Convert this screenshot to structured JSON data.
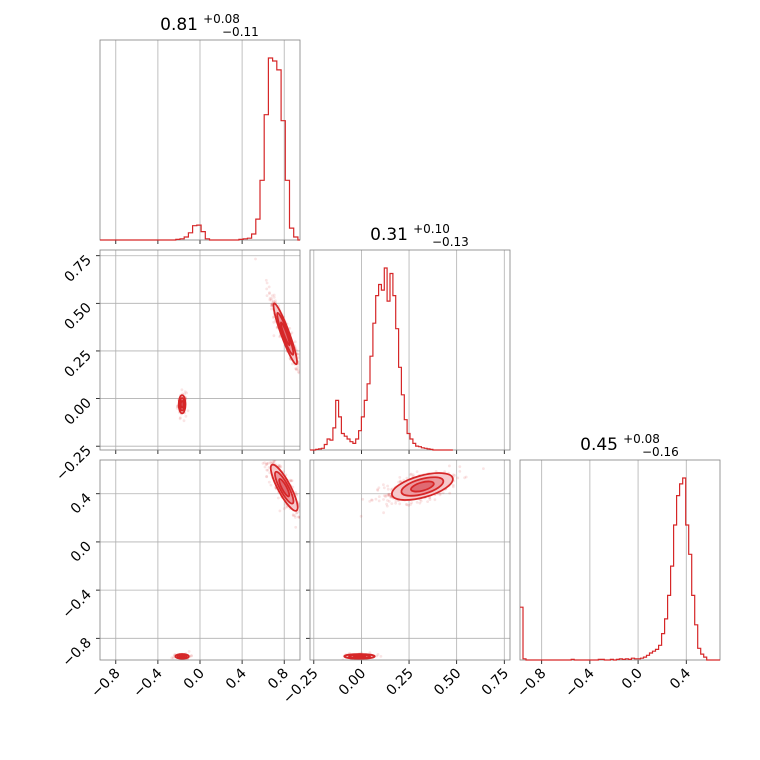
{
  "chart_data": {
    "type": "corner",
    "color": "#d62728",
    "parameters": [
      {
        "median_label": "0.81",
        "plus": "+0.08",
        "minus": "−0.11",
        "range": [
          -0.95,
          0.95
        ],
        "ticks": [
          -0.8,
          -0.4,
          0.0,
          0.4,
          0.8
        ],
        "tick_labels": [
          "−0.8",
          "−0.4",
          "0.0",
          "0.4",
          "0.8"
        ]
      },
      {
        "median_label": "0.31",
        "plus": "+0.10",
        "minus": "−0.13",
        "range": [
          -0.27,
          0.78
        ],
        "ticks": [
          -0.25,
          0.0,
          0.25,
          0.5,
          0.75
        ],
        "tick_labels": [
          "−0.25",
          "0.00",
          "0.25",
          "0.50",
          "0.75"
        ]
      },
      {
        "median_label": "0.45",
        "plus": "+0.08",
        "minus": "−0.16",
        "range": [
          -0.98,
          0.68
        ],
        "ticks": [
          -0.8,
          -0.4,
          0.0,
          0.4
        ],
        "tick_labels": [
          "−0.8",
          "−0.4",
          "0.0",
          "0.4"
        ]
      }
    ],
    "histograms": [
      {
        "edges_start": -0.95,
        "bin_width": 0.04,
        "counts": [
          0,
          0,
          0,
          0,
          0,
          0,
          0,
          0,
          0,
          0,
          0,
          0,
          0,
          0,
          0,
          0,
          0,
          0,
          1,
          2,
          5,
          12,
          24,
          25,
          14,
          2,
          0,
          0,
          0,
          0,
          0,
          0,
          0,
          1,
          2,
          3,
          10,
          35,
          100,
          210,
          305,
          300,
          285,
          200,
          100,
          20,
          5,
          0
        ]
      },
      {
        "edges_start": -0.27,
        "bin_width": 0.015,
        "counts": [
          0,
          0,
          1,
          2,
          3,
          10,
          20,
          18,
          40,
          90,
          60,
          30,
          25,
          20,
          15,
          12,
          20,
          35,
          60,
          90,
          120,
          170,
          230,
          280,
          300,
          290,
          330,
          270,
          320,
          280,
          220,
          150,
          100,
          55,
          30,
          20,
          12,
          7,
          6,
          4,
          3,
          2,
          1,
          0,
          0,
          0,
          0,
          0,
          0,
          0
        ]
      },
      {
        "edges_start": -0.98,
        "bin_width": 0.025,
        "counts": [
          90,
          2,
          0,
          0,
          0,
          0,
          0,
          0,
          0,
          0,
          0,
          0,
          0,
          0,
          0,
          0,
          0,
          1,
          0,
          0,
          0,
          0,
          0,
          0,
          0,
          0,
          1,
          1,
          0,
          0,
          1,
          0,
          1,
          2,
          1,
          2,
          1,
          3,
          2,
          2,
          3,
          5,
          8,
          12,
          15,
          18,
          25,
          45,
          70,
          110,
          160,
          230,
          280,
          300,
          310,
          230,
          180,
          110,
          60,
          20,
          10,
          5,
          0,
          0,
          0,
          0,
          0
        ]
      }
    ],
    "pairs": [
      {
        "x_param": 0,
        "y_param": 1,
        "clusters": [
          {
            "center": [
              0.81,
              0.34
            ],
            "sigma": [
              0.07,
              0.1
            ],
            "corr": -0.93
          },
          {
            "center": [
              -0.17,
              -0.03
            ],
            "sigma": [
              0.02,
              0.03
            ],
            "corr": 0.0
          }
        ]
      },
      {
        "x_param": 0,
        "y_param": 2,
        "clusters": [
          {
            "center": [
              0.8,
              0.45
            ],
            "sigma": [
              0.08,
              0.12
            ],
            "corr": -0.85
          },
          {
            "center": [
              -0.17,
              -0.95
            ],
            "sigma": [
              0.04,
              0.012
            ],
            "corr": 0.0
          }
        ]
      },
      {
        "x_param": 1,
        "y_param": 2,
        "clusters": [
          {
            "center": [
              0.32,
              0.46
            ],
            "sigma": [
              0.1,
              0.07
            ],
            "corr": 0.55
          },
          {
            "center": [
              -0.01,
              -0.95
            ],
            "sigma": [
              0.05,
              0.012
            ],
            "corr": 0.0
          }
        ]
      }
    ],
    "grid": true
  }
}
